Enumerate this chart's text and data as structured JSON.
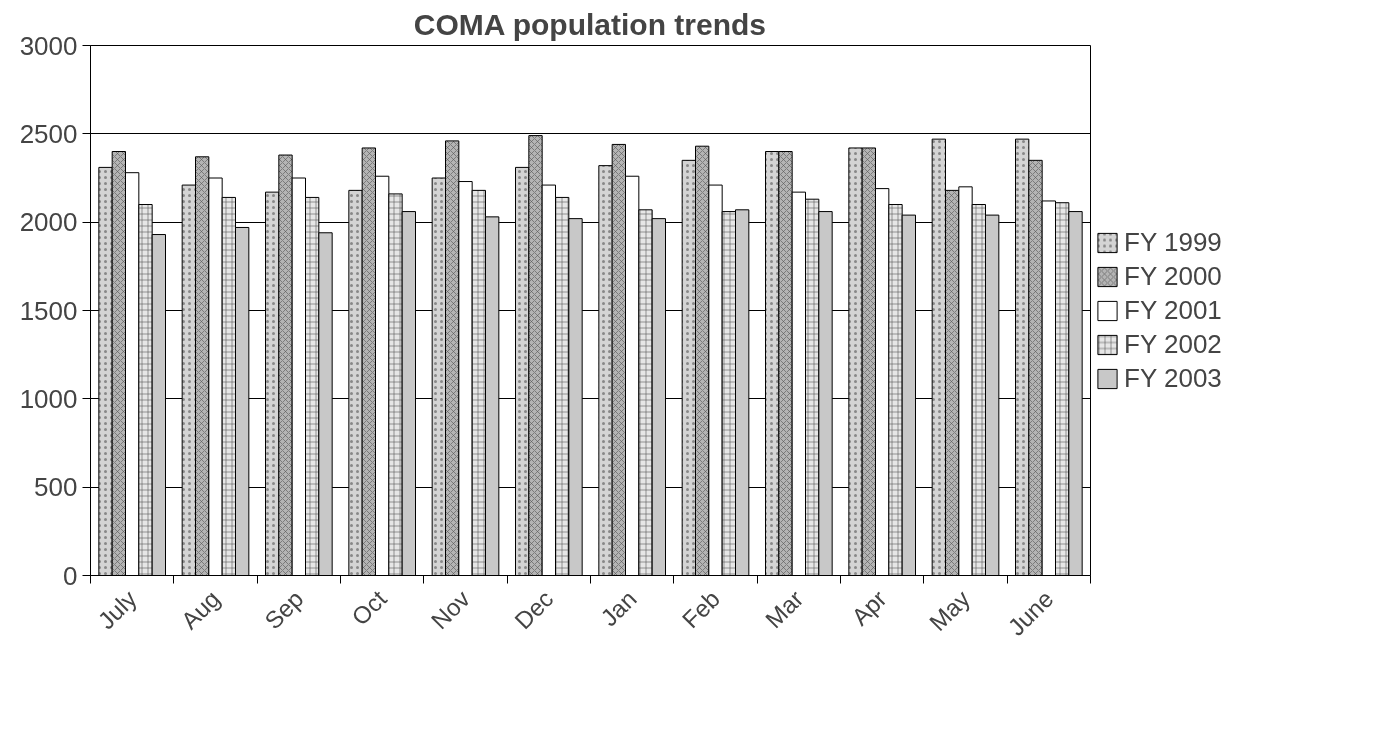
{
  "chart_data": {
    "type": "bar",
    "title": "COMA population trends",
    "categories": [
      "July",
      "Aug",
      "Sep",
      "Oct",
      "Nov",
      "Dec",
      "Jan",
      "Feb",
      "Mar",
      "Apr",
      "May",
      "June"
    ],
    "series": [
      {
        "name": "FY 1999",
        "color": "#d4d4d4",
        "values": [
          2310,
          2210,
          2170,
          2180,
          2250,
          2310,
          2320,
          2350,
          2400,
          2420,
          2470,
          2470
        ]
      },
      {
        "name": "FY 2000",
        "color": "#b4b4b4",
        "values": [
          2400,
          2370,
          2380,
          2420,
          2460,
          2490,
          2440,
          2430,
          2400,
          2420,
          2180,
          2350
        ]
      },
      {
        "name": "FY 2001",
        "color": "#ffffff",
        "values": [
          2280,
          2250,
          2250,
          2260,
          2230,
          2210,
          2260,
          2210,
          2170,
          2190,
          2200,
          2120
        ]
      },
      {
        "name": "FY 2002",
        "color": "#e6e6e6",
        "values": [
          2100,
          2140,
          2140,
          2160,
          2180,
          2140,
          2070,
          2060,
          2130,
          2100,
          2100,
          2110
        ]
      },
      {
        "name": "FY 2003",
        "color": "#c8c8c8",
        "values": [
          1930,
          1970,
          1940,
          2060,
          2030,
          2020,
          2020,
          2070,
          2060,
          2040,
          2040,
          2060
        ]
      }
    ],
    "ylim": [
      0,
      3000
    ],
    "yticks": [
      0,
      500,
      1000,
      1500,
      2000,
      2500,
      3000
    ],
    "grid": "y",
    "legend": "right"
  }
}
